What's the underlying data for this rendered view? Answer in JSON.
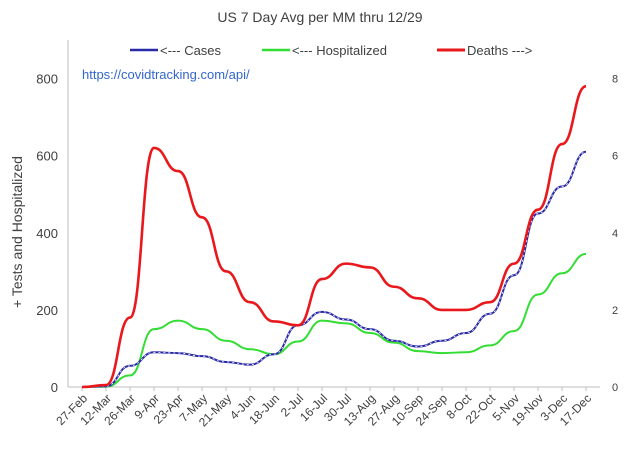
{
  "chart_data": {
    "type": "line",
    "title": "US 7 Day Avg per MM thru 12/29",
    "annotation": "https://covidtracking.com/api/",
    "ylabel": "+ Tests and Hospitalized",
    "ylim": [
      0,
      900
    ],
    "y2lim": [
      0,
      9
    ],
    "yticks": [
      0,
      200,
      400,
      600,
      800
    ],
    "y2ticks": [
      0,
      2,
      4,
      6,
      8
    ],
    "legend_position": "top",
    "grid": false,
    "categories": [
      "27-Feb",
      "12-Mar",
      "26-Mar",
      "9-Apr",
      "23-Apr",
      "7-May",
      "21-May",
      "4-Jun",
      "18-Jun",
      "2-Jul",
      "16-Jul",
      "30-Jul",
      "13-Aug",
      "27-Aug",
      "10-Sep",
      "24-Sep",
      "8-Oct",
      "22-Oct",
      "5-Nov",
      "19-Nov",
      "3-Dec",
      "17-Dec"
    ],
    "series": [
      {
        "name": "<--- Cases",
        "axis": "left",
        "color": "#2a2aa8",
        "values": [
          0,
          2,
          55,
          90,
          88,
          80,
          65,
          58,
          85,
          160,
          195,
          175,
          150,
          120,
          105,
          120,
          140,
          190,
          290,
          450,
          520,
          610
        ]
      },
      {
        "name": "<--- Hospitalized",
        "axis": "left",
        "color": "#33dd33",
        "values": [
          0,
          1,
          30,
          150,
          172,
          150,
          120,
          98,
          85,
          118,
          172,
          165,
          140,
          115,
          93,
          88,
          90,
          108,
          145,
          240,
          295,
          345
        ]
      },
      {
        "name": "Deaths --->",
        "axis": "right",
        "color": "#e8181c",
        "values": [
          0,
          0.05,
          1.8,
          6.2,
          5.6,
          4.4,
          3.0,
          2.2,
          1.7,
          1.6,
          2.8,
          3.2,
          3.1,
          2.6,
          2.3,
          2.0,
          2.0,
          2.2,
          3.2,
          4.6,
          6.3,
          7.8
        ]
      }
    ]
  }
}
